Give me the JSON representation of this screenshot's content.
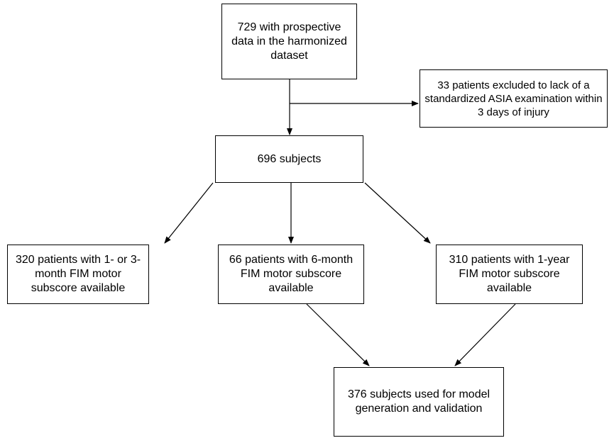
{
  "nodes": {
    "start": "729 with prospective data in the harmonized dataset",
    "excluded": "33 patients excluded to lack of a standardized ASIA examination within 3 days of injury",
    "subjects": "696 subjects",
    "one_three_month": "320 patients with 1- or 3-month FIM motor subscore available",
    "six_month": "66 patients with 6-month FIM motor subscore available",
    "one_year": "310 patients with 1-year FIM motor subscore available",
    "final": "376 subjects used for model generation and validation"
  },
  "edges": [
    {
      "from": "start",
      "to": "subjects"
    },
    {
      "from": "start",
      "to": "excluded"
    },
    {
      "from": "subjects",
      "to": "one_three_month"
    },
    {
      "from": "subjects",
      "to": "six_month"
    },
    {
      "from": "subjects",
      "to": "one_year"
    },
    {
      "from": "six_month",
      "to": "final"
    },
    {
      "from": "one_year",
      "to": "final"
    }
  ]
}
